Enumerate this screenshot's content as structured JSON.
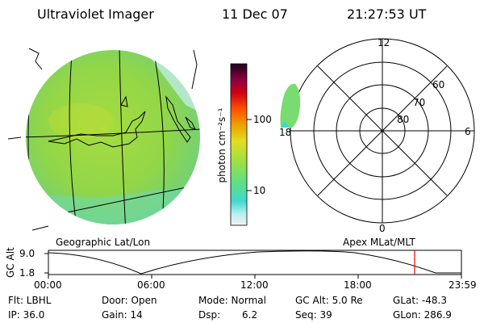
{
  "header": {
    "instrument": "Ultraviolet Imager",
    "date": "11 Dec 07",
    "time": "21:27:53 UT"
  },
  "globe": {
    "projection_label": "Geographic Lat/Lon"
  },
  "colorbar": {
    "unit_label": "photon cm⁻²s⁻¹",
    "ticks": [
      "100",
      "10"
    ]
  },
  "polar": {
    "projection_label": "Apex MLat/MLT",
    "mlt_labels": {
      "top": "12",
      "left": "18",
      "right": "6",
      "bottom": "0"
    },
    "lat_labels": [
      "60",
      "70",
      "80"
    ]
  },
  "altitude_plot": {
    "ylabel": "GC Alt",
    "y_ticks": [
      "9.0",
      "1.8"
    ],
    "x_ticks": [
      "00:00",
      "06:00",
      "12:00",
      "18:00",
      "23:59"
    ],
    "marker_color": "#e00000"
  },
  "footer": {
    "filter": "Flt: LBHL",
    "door": "Door: Open",
    "mode": "Mode: Normal",
    "gc_alt": "GC Alt: 5.0 Re",
    "glat": "GLat: -48.3",
    "ip": "IP: 36.0",
    "gain": "Gain: 14",
    "dsp_label": "Dsp:",
    "dsp_value": "6.2",
    "seq": "Seq: 39",
    "glon": "GLon: 286.9"
  }
}
